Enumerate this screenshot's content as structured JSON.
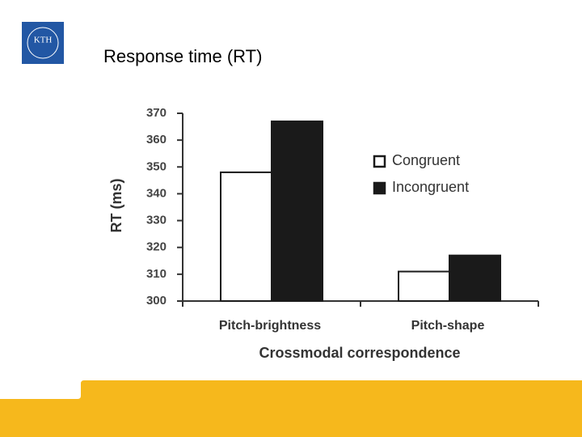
{
  "slide_title": "Response time (RT)",
  "logo": "KTH",
  "chart_data": {
    "type": "bar",
    "y_label": "RT (ms)",
    "x_label": "Crossmodal correspondence",
    "categories": [
      "Pitch-brightness",
      "Pitch-shape"
    ],
    "series": [
      {
        "name": "Congruent",
        "color": "#ffffff",
        "values": [
          348,
          311
        ]
      },
      {
        "name": "Incongruent",
        "color": "#1a1a1a",
        "values": [
          367,
          317
        ]
      }
    ],
    "ylim": [
      300,
      370
    ],
    "yticks": [
      300,
      310,
      320,
      330,
      340,
      350,
      360,
      370
    ],
    "legend": "upper right"
  }
}
